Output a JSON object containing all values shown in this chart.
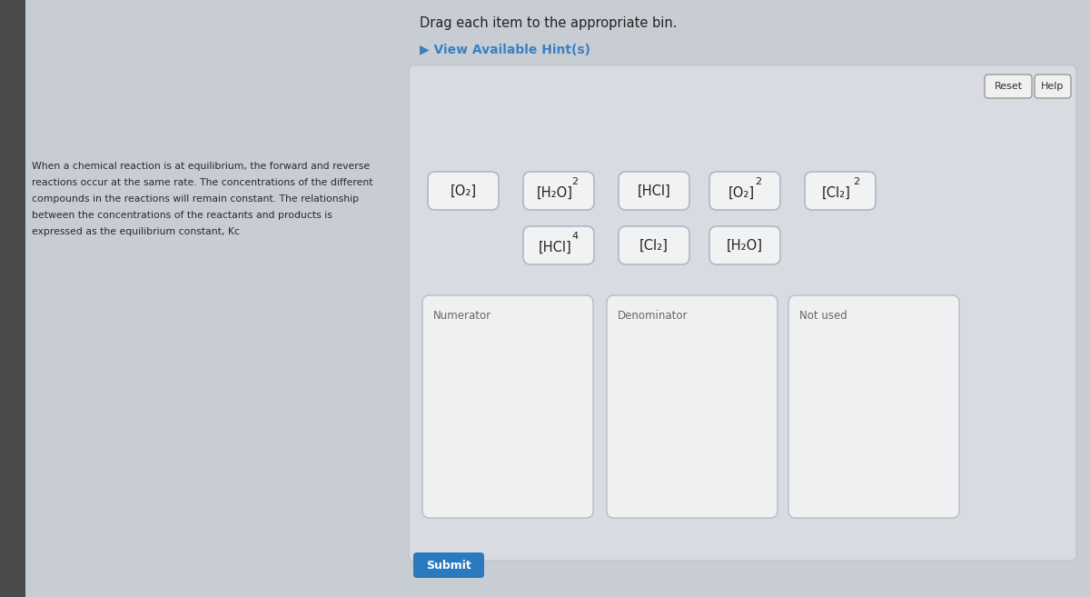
{
  "bg_left_color": "#5a5a5a",
  "bg_main_color": "#c8cdd4",
  "panel_bg": "#dce0e6",
  "title": "Drag each item to the appropriate bin.",
  "hint_text": "▶ View Available Hint(s)",
  "hint_color": "#3a7fc1",
  "left_text_lines": [
    "When a chemical reaction is at equilibrium, the forward and reverse",
    "reactions occur at the same rate. The concentrations of the different",
    "compounds in the reactions will remain constant. The relationship",
    "between the concentrations of the reactants and products is",
    "expressed as the equilibrium constant, Kᴄ"
  ],
  "reset_btn": "Reset",
  "help_btn": "Help",
  "submit_btn": "Submit",
  "submit_bg": "#2a7abf",
  "submit_color": "white",
  "token_rows": [
    [
      {
        "text": "[O₂]",
        "sup": ""
      },
      {
        "text": "[H₂O]",
        "sup": "2"
      },
      {
        "text": "[HCl]",
        "sup": ""
      },
      {
        "text": "[O₂]",
        "sup": "2"
      },
      {
        "text": "[Cl₂]",
        "sup": "2"
      }
    ],
    [
      {
        "text": "[HCl]",
        "sup": "4"
      },
      {
        "text": "[Cl₂]",
        "sup": ""
      },
      {
        "text": "[H₂O]",
        "sup": ""
      }
    ]
  ],
  "bins": [
    "Numerator",
    "Denominator",
    "Not used"
  ],
  "token_bg": "#f0f2f4",
  "token_border": "#b0b8c0",
  "bin_bg": "#eef0f2",
  "bin_border": "#b8bcc2"
}
